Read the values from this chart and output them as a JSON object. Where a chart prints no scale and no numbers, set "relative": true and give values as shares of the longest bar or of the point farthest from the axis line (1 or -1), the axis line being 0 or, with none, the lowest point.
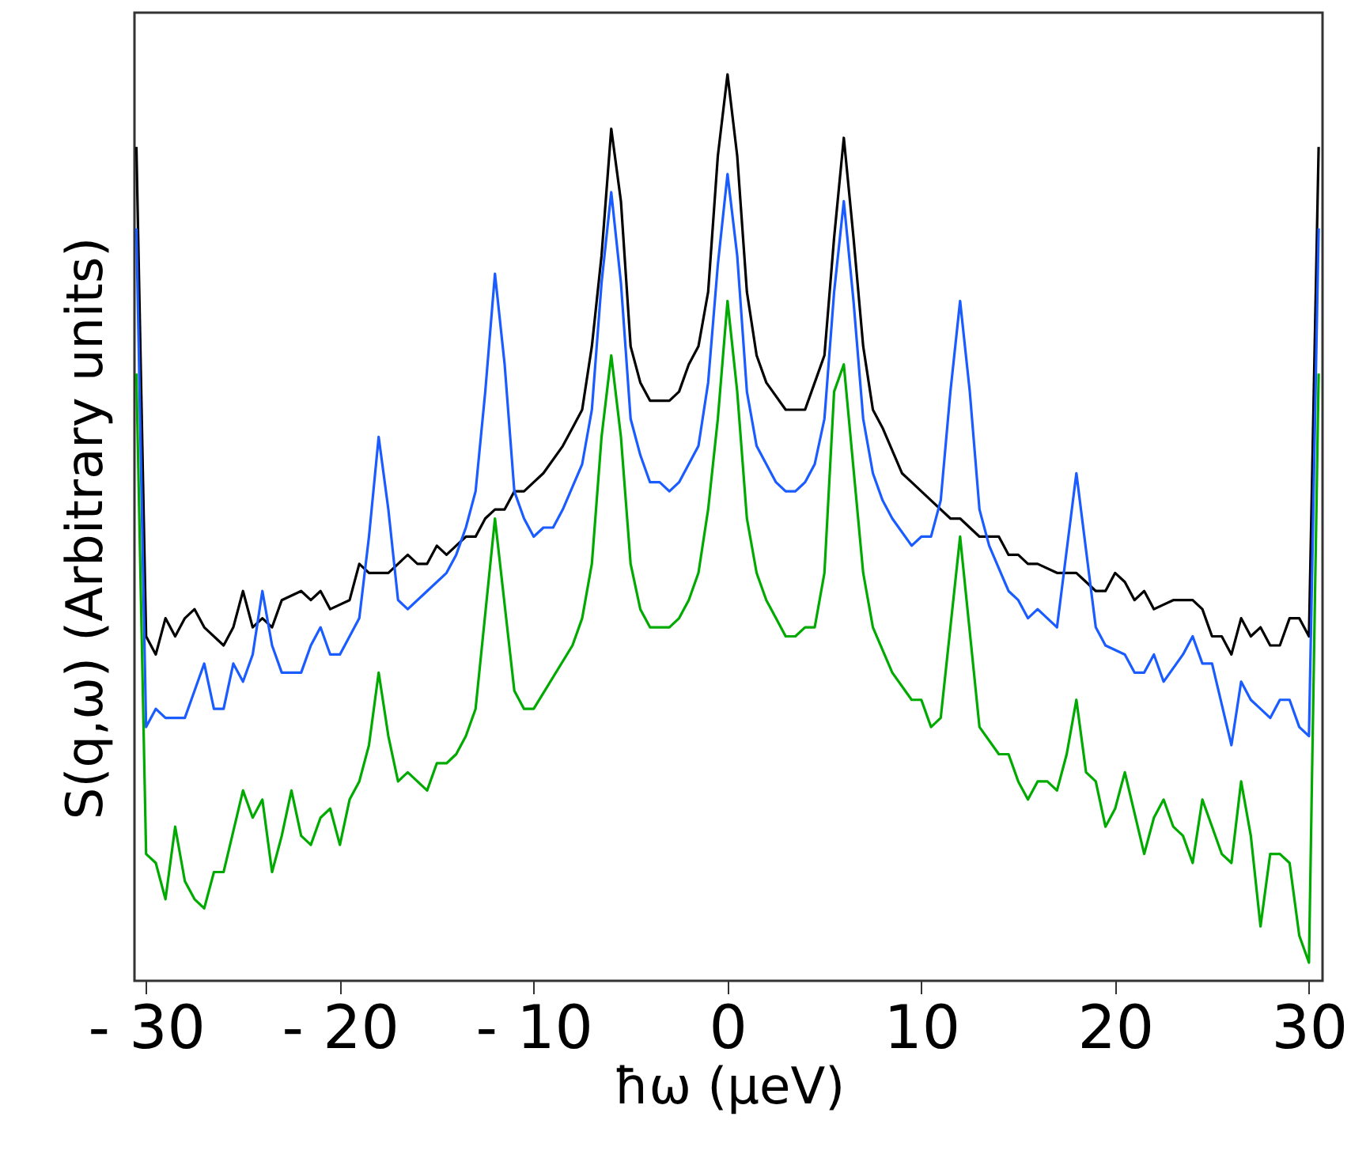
{
  "chart_data": {
    "type": "line",
    "xlabel": "ħω (μeV)",
    "ylabel": "S(q,ω) (Arbitrary units)",
    "relative": true,
    "grid": false,
    "marker": "none",
    "line_style": "solid",
    "xlim": [
      -30.6,
      30.7
    ],
    "xticks": [
      {
        "value": -30,
        "label": "- 30"
      },
      {
        "value": -20,
        "label": "- 20"
      },
      {
        "value": -10,
        "label": "- 10"
      },
      0,
      10,
      20,
      30
    ],
    "series": [
      {
        "color": "#000000",
        "x": [
          -30.5,
          -30,
          -29.5,
          -29,
          -28.5,
          -28,
          -27.5,
          -27,
          -26,
          -25.5,
          -25,
          -24.5,
          -24,
          -23.5,
          -23,
          -22,
          -21.5,
          -21,
          -20.5,
          -19.5,
          -19,
          -18.5,
          -18,
          -17.5,
          -17,
          -16.5,
          -16,
          -15.5,
          -15,
          -14.5,
          -14,
          -13.5,
          -13,
          -12.5,
          -12,
          -11.5,
          -11,
          -10.5,
          -10,
          -9.5,
          -8.5,
          -8,
          -7.5,
          -7,
          -6.5,
          -6,
          -5.5,
          -5,
          -4.5,
          -4,
          -3,
          -2.5,
          -2,
          -1.5,
          -1,
          -0.5,
          0,
          0.5,
          1,
          1.5,
          2,
          3,
          3.5,
          4,
          4.5,
          5,
          5.5,
          6,
          6.5,
          7,
          7.5,
          8,
          9,
          9.5,
          10,
          10.5,
          11.5,
          12,
          12.5,
          13,
          14,
          14.5,
          15,
          15.5,
          16,
          17,
          17.5,
          18,
          18.5,
          19,
          19.5,
          20,
          20.5,
          21,
          21.5,
          22,
          23,
          23.5,
          24,
          24.5,
          25,
          25.5,
          26,
          26.5,
          27,
          27.5,
          28,
          28.5,
          29,
          29.5,
          30,
          30.5
        ],
        "values": [
          0.92,
          0.38,
          0.36,
          0.4,
          0.38,
          0.4,
          0.41,
          0.39,
          0.37,
          0.39,
          0.43,
          0.39,
          0.4,
          0.39,
          0.42,
          0.43,
          0.42,
          0.43,
          0.41,
          0.42,
          0.46,
          0.45,
          0.45,
          0.45,
          0.46,
          0.47,
          0.46,
          0.46,
          0.48,
          0.47,
          0.48,
          0.49,
          0.49,
          0.51,
          0.52,
          0.52,
          0.54,
          0.54,
          0.55,
          0.56,
          0.59,
          0.61,
          0.63,
          0.7,
          0.8,
          0.94,
          0.86,
          0.7,
          0.66,
          0.64,
          0.64,
          0.65,
          0.68,
          0.7,
          0.76,
          0.91,
          1,
          0.91,
          0.76,
          0.69,
          0.66,
          0.63,
          0.63,
          0.63,
          0.66,
          0.69,
          0.82,
          0.93,
          0.82,
          0.7,
          0.63,
          0.61,
          0.56,
          0.55,
          0.54,
          0.53,
          0.51,
          0.51,
          0.5,
          0.49,
          0.49,
          0.47,
          0.47,
          0.46,
          0.46,
          0.45,
          0.45,
          0.45,
          0.44,
          0.43,
          0.43,
          0.45,
          0.44,
          0.42,
          0.43,
          0.41,
          0.42,
          0.42,
          0.42,
          0.41,
          0.38,
          0.38,
          0.36,
          0.4,
          0.38,
          0.39,
          0.37,
          0.37,
          0.4,
          0.4,
          0.38,
          0.92
        ]
      },
      {
        "color": "#1a5cff",
        "x": [
          -30.5,
          -30,
          -29.5,
          -29,
          -28.5,
          -28,
          -27.5,
          -27,
          -26.5,
          -26,
          -25.5,
          -25,
          -24.5,
          -24,
          -23.5,
          -23,
          -22.5,
          -22,
          -21.5,
          -21,
          -20.5,
          -20,
          -19,
          -18.5,
          -18,
          -17.5,
          -17,
          -16.5,
          -15.5,
          -14.5,
          -14,
          -13.5,
          -13,
          -12.5,
          -12,
          -11.5,
          -11,
          -10.5,
          -10,
          -9.5,
          -9,
          -8.5,
          -7.5,
          -7,
          -6.5,
          -6,
          -5.5,
          -5,
          -4.5,
          -4,
          -3.5,
          -3,
          -2.5,
          -2,
          -1.5,
          -1,
          -0.5,
          0,
          0.5,
          1,
          1.5,
          2,
          2.5,
          3,
          3.5,
          4,
          4.5,
          5,
          5.5,
          6,
          6.5,
          7,
          7.5,
          8,
          8.5,
          9.5,
          10,
          10.5,
          11,
          11.5,
          12,
          12.5,
          13,
          13.5,
          14.5,
          15,
          15.5,
          16,
          17,
          18,
          19,
          19.5,
          20.5,
          21,
          21.5,
          22,
          22.5,
          23.5,
          24,
          24.5,
          25,
          26,
          26.5,
          27,
          27.5,
          28,
          28.5,
          29,
          29.5,
          30,
          30.5
        ],
        "values": [
          0.83,
          0.28,
          0.3,
          0.29,
          0.29,
          0.29,
          0.32,
          0.35,
          0.3,
          0.3,
          0.35,
          0.33,
          0.36,
          0.43,
          0.37,
          0.34,
          0.34,
          0.34,
          0.37,
          0.39,
          0.36,
          0.36,
          0.4,
          0.49,
          0.6,
          0.52,
          0.42,
          0.41,
          0.43,
          0.45,
          0.47,
          0.5,
          0.54,
          0.65,
          0.78,
          0.68,
          0.54,
          0.51,
          0.49,
          0.5,
          0.5,
          0.52,
          0.57,
          0.63,
          0.77,
          0.87,
          0.77,
          0.62,
          0.58,
          0.55,
          0.55,
          0.54,
          0.55,
          0.57,
          0.59,
          0.66,
          0.79,
          0.89,
          0.8,
          0.65,
          0.59,
          0.57,
          0.55,
          0.54,
          0.54,
          0.55,
          0.57,
          0.62,
          0.76,
          0.86,
          0.75,
          0.62,
          0.56,
          0.53,
          0.51,
          0.48,
          0.49,
          0.49,
          0.53,
          0.65,
          0.75,
          0.65,
          0.52,
          0.48,
          0.43,
          0.42,
          0.4,
          0.41,
          0.39,
          0.56,
          0.39,
          0.37,
          0.36,
          0.34,
          0.34,
          0.36,
          0.33,
          0.36,
          0.38,
          0.35,
          0.35,
          0.26,
          0.33,
          0.31,
          0.3,
          0.29,
          0.31,
          0.31,
          0.28,
          0.27,
          0.83
        ]
      },
      {
        "color": "#00aa00",
        "x": [
          -30.5,
          -30,
          -29.5,
          -29,
          -28.5,
          -28,
          -27.5,
          -27,
          -26.5,
          -26,
          -25,
          -24.5,
          -24,
          -23.5,
          -23,
          -22.5,
          -22,
          -21.5,
          -21,
          -20.5,
          -20,
          -19.5,
          -19,
          -18.5,
          -18,
          -17.5,
          -17,
          -16.5,
          -16,
          -15.5,
          -15,
          -14.5,
          -14,
          -13.5,
          -13,
          -12,
          -11,
          -10.5,
          -10,
          -8,
          -7.5,
          -7,
          -6.5,
          -6,
          -5.5,
          -5,
          -4.5,
          -4,
          -3.5,
          -3,
          -2.5,
          -2,
          -1.5,
          -1,
          -0.5,
          0,
          0.5,
          1,
          1.5,
          2,
          2.5,
          3,
          3.5,
          4,
          4.5,
          5,
          5.5,
          6,
          7,
          7.5,
          8.5,
          9.5,
          10,
          10.5,
          11,
          12,
          13,
          14,
          14.5,
          15,
          15.5,
          16,
          16.5,
          17,
          17.5,
          18,
          18.5,
          19,
          19.5,
          20,
          20.5,
          21.5,
          22,
          22.5,
          23,
          23.5,
          24,
          24.5,
          25.5,
          26,
          26.5,
          27,
          27.5,
          28,
          28.5,
          29,
          29.5,
          30,
          30.5
        ],
        "values": [
          0.67,
          0.14,
          0.13,
          0.09,
          0.17,
          0.11,
          0.09,
          0.08,
          0.12,
          0.12,
          0.21,
          0.18,
          0.2,
          0.12,
          0.16,
          0.21,
          0.16,
          0.15,
          0.18,
          0.19,
          0.15,
          0.2,
          0.22,
          0.26,
          0.34,
          0.27,
          0.22,
          0.23,
          0.22,
          0.21,
          0.24,
          0.24,
          0.25,
          0.27,
          0.3,
          0.51,
          0.32,
          0.3,
          0.3,
          0.37,
          0.4,
          0.46,
          0.6,
          0.69,
          0.6,
          0.46,
          0.41,
          0.39,
          0.39,
          0.39,
          0.4,
          0.42,
          0.45,
          0.52,
          0.62,
          0.75,
          0.65,
          0.51,
          0.45,
          0.42,
          0.4,
          0.38,
          0.38,
          0.39,
          0.39,
          0.45,
          0.65,
          0.68,
          0.45,
          0.39,
          0.34,
          0.31,
          0.31,
          0.28,
          0.29,
          0.49,
          0.28,
          0.25,
          0.25,
          0.22,
          0.2,
          0.22,
          0.22,
          0.21,
          0.25,
          0.31,
          0.23,
          0.22,
          0.17,
          0.19,
          0.23,
          0.14,
          0.18,
          0.2,
          0.17,
          0.16,
          0.13,
          0.2,
          0.14,
          0.13,
          0.22,
          0.16,
          0.06,
          0.14,
          0.14,
          0.13,
          0.05,
          0.02,
          0.67
        ]
      }
    ]
  }
}
